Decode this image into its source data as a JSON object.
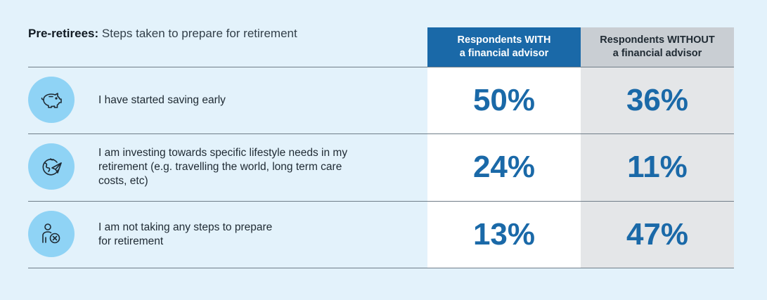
{
  "title": {
    "bold": "Pre-retirees:",
    "rest": " Steps taken to prepare for retirement"
  },
  "columns": {
    "with": "Respondents WITH\na financial advisor",
    "without": "Respondents WITHOUT\na financial advisor"
  },
  "colors": {
    "accent": "#1a69a8",
    "icon_circle": "#8fd3f5",
    "without_header": "#c9ced3"
  },
  "rows": [
    {
      "icon": "piggy-bank-icon",
      "label": "I have started saving early",
      "with": "50%",
      "without": "36%"
    },
    {
      "icon": "globe-plane-icon",
      "label": "I am investing towards specific lifestyle needs in my\nretirement (e.g. travelling the world, long term care\ncosts, etc)",
      "with": "24%",
      "without": "11%"
    },
    {
      "icon": "person-x-icon",
      "label": "I am not taking any steps to prepare\nfor retirement",
      "with": "13%",
      "without": "47%"
    }
  ],
  "chart_data": {
    "type": "table",
    "title": "Pre-retirees: Steps taken to prepare for retirement",
    "categories": [
      "I have started saving early",
      "I am investing towards specific lifestyle needs in my retirement (e.g. travelling the world, long term care costs, etc)",
      "I am not taking any steps to prepare for retirement"
    ],
    "series": [
      {
        "name": "Respondents WITH a financial advisor",
        "values": [
          50,
          24,
          13
        ]
      },
      {
        "name": "Respondents WITHOUT a financial advisor",
        "values": [
          36,
          11,
          47
        ]
      }
    ]
  }
}
